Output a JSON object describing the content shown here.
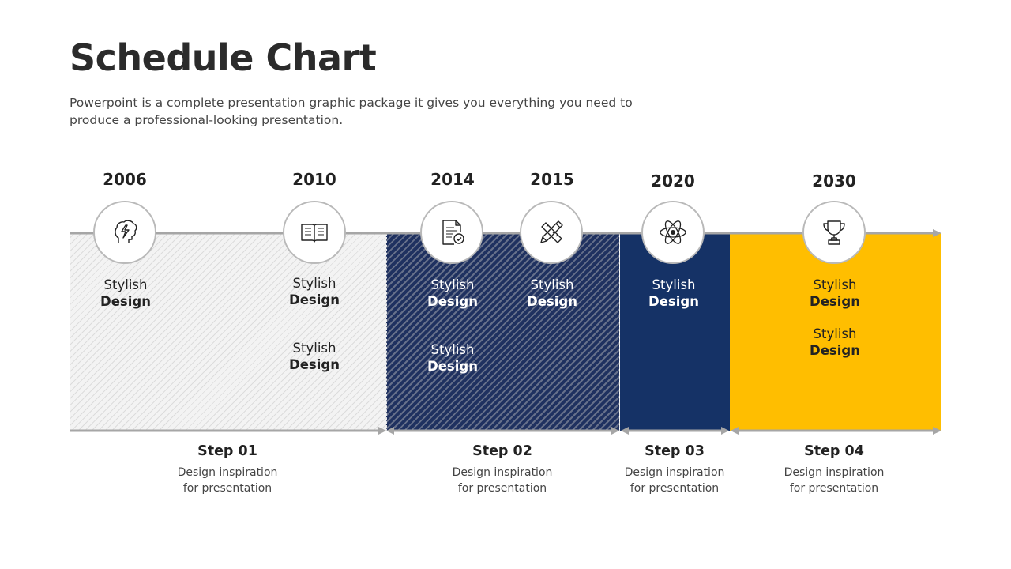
{
  "title": "Schedule Chart",
  "subtitle_line1": "Powerpoint is a complete presentation graphic package it gives you everything you need to",
  "subtitle_line2": "produce a professional-looking presentation.",
  "colors": {
    "region_1": "#f3f3f3",
    "region_2": "#1f3160",
    "region_3": "#153266",
    "region_4": "#ffbe00",
    "line": "#a6a6a6"
  },
  "milestones": [
    {
      "year": "2006",
      "icon": "brain-lightning-icon"
    },
    {
      "year": "2010",
      "icon": "open-book-icon"
    },
    {
      "year": "2014",
      "icon": "document-check-icon"
    },
    {
      "year": "2015",
      "icon": "pencil-ruler-icon"
    },
    {
      "year": "2020",
      "icon": "atom-icon"
    },
    {
      "year": "2030",
      "icon": "trophy-icon"
    }
  ],
  "labels": [
    {
      "line1": "Stylish",
      "line2": "Design"
    },
    {
      "line1": "Stylish",
      "line2": "Design"
    },
    {
      "line1": "Stylish",
      "line2": "Design"
    },
    {
      "line1": "Stylish",
      "line2": "Design"
    },
    {
      "line1": "Stylish",
      "line2": "Design"
    },
    {
      "line1": "Stylish",
      "line2": "Design"
    },
    {
      "line1": "Stylish",
      "line2": "Design"
    },
    {
      "line1": "Stylish",
      "line2": "Design"
    },
    {
      "line1": "Stylish",
      "line2": "Design"
    }
  ],
  "steps": [
    {
      "title": "Step 01",
      "desc_line1": "Design inspiration",
      "desc_line2": "for presentation"
    },
    {
      "title": "Step 02",
      "desc_line1": "Design inspiration",
      "desc_line2": "for presentation"
    },
    {
      "title": "Step 03",
      "desc_line1": "Design inspiration",
      "desc_line2": "for presentation"
    },
    {
      "title": "Step 04",
      "desc_line1": "Design inspiration",
      "desc_line2": "for presentation"
    }
  ]
}
